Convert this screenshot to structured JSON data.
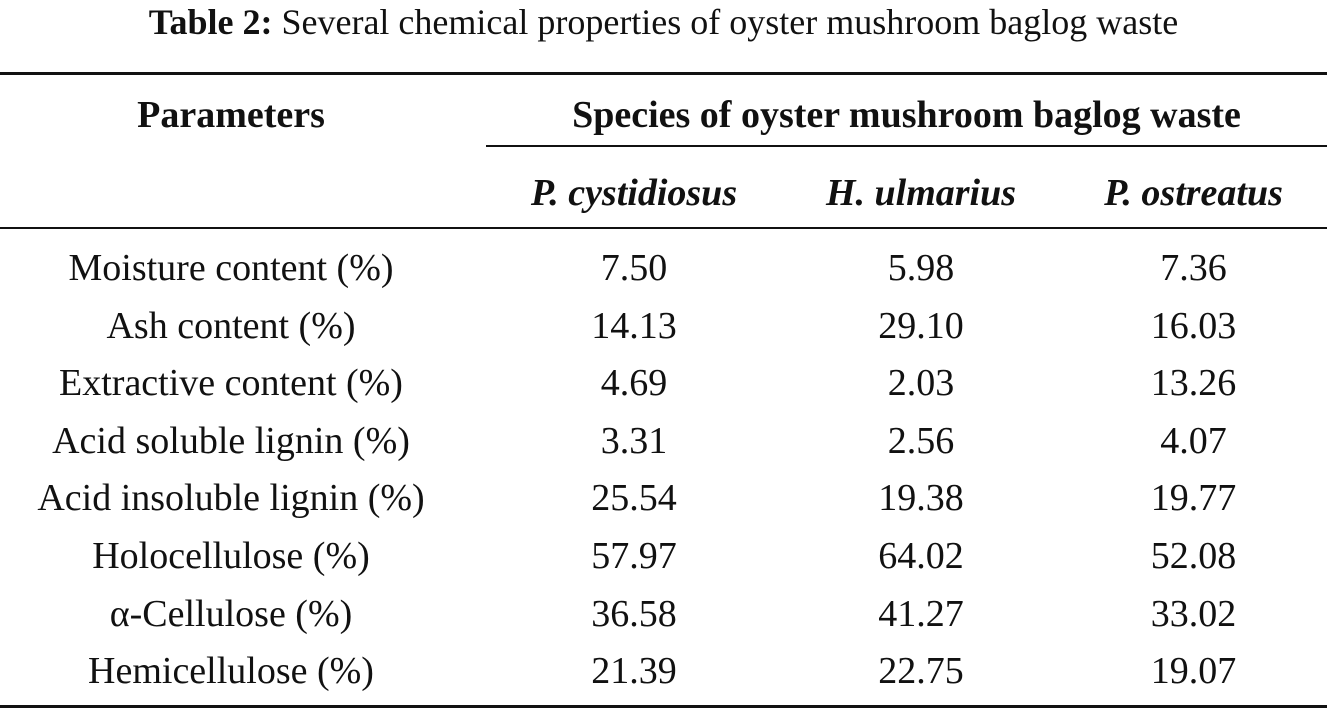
{
  "caption": {
    "label": "Table 2:",
    "text": "Several chemical properties of oyster mushroom baglog waste"
  },
  "header": {
    "parameters": "Parameters",
    "group": "Species of oyster mushroom baglog waste",
    "species": [
      "P. cystidiosus",
      "H. ulmarius",
      "P. ostreatus"
    ]
  },
  "rows": [
    {
      "parameter": "Moisture content (%)",
      "values": [
        "7.50",
        "5.98",
        "7.36"
      ]
    },
    {
      "parameter": "Ash content (%)",
      "values": [
        "14.13",
        "29.10",
        "16.03"
      ]
    },
    {
      "parameter": "Extractive content (%)",
      "values": [
        "4.69",
        "2.03",
        "13.26"
      ]
    },
    {
      "parameter": "Acid soluble lignin (%)",
      "values": [
        "3.31",
        "2.56",
        "4.07"
      ]
    },
    {
      "parameter": "Acid insoluble lignin (%)",
      "values": [
        "25.54",
        "19.38",
        "19.77"
      ]
    },
    {
      "parameter": "Holocellulose (%)",
      "values": [
        "57.97",
        "64.02",
        "52.08"
      ]
    },
    {
      "parameter": "α-Cellulose (%)",
      "values": [
        "36.58",
        "41.27",
        "33.02"
      ]
    },
    {
      "parameter": "Hemicellulose (%)",
      "values": [
        "21.39",
        "22.75",
        "19.07"
      ]
    }
  ]
}
